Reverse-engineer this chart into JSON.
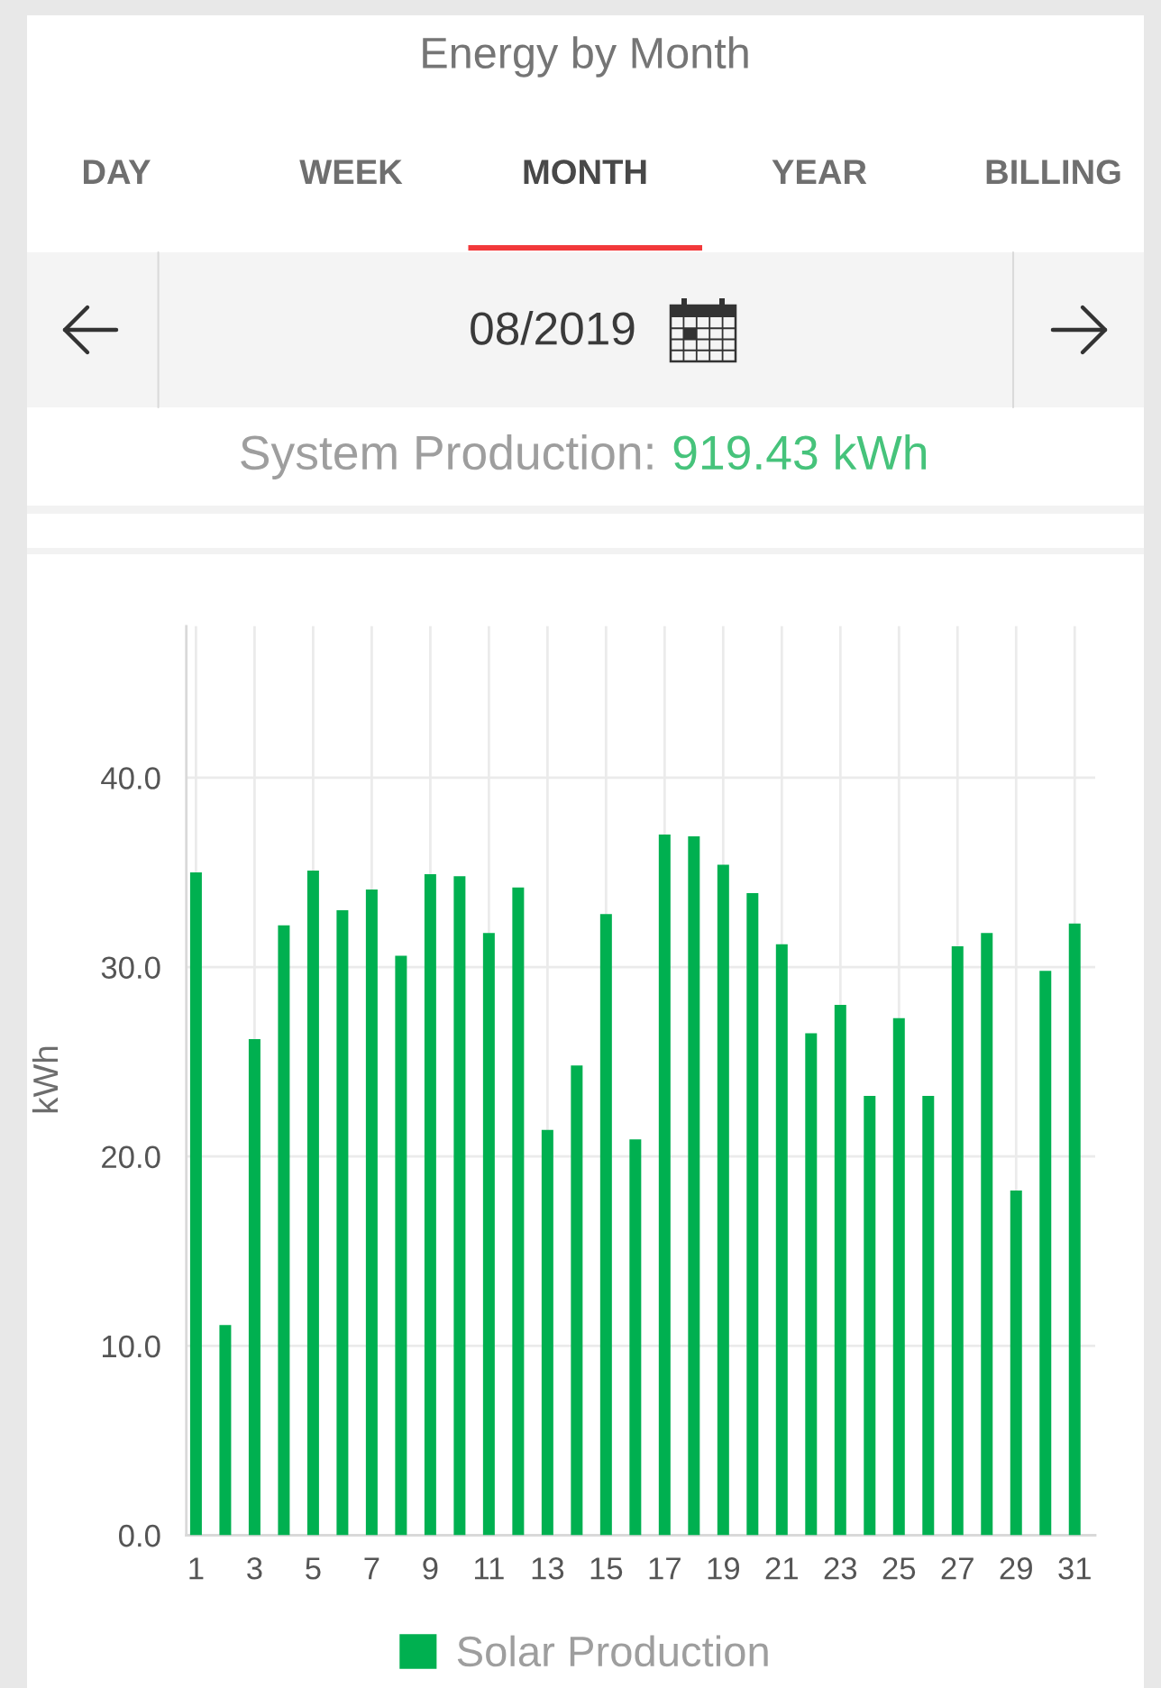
{
  "chart_data": {
    "type": "bar",
    "title": "Energy by Month",
    "annotations": [
      "DAY",
      "WEEK",
      "MONTH",
      "YEAR",
      "BILLING",
      "08/2019",
      "System Production:",
      "919.43 kWh"
    ],
    "ylabel": "kWh",
    "categories": [
      "1",
      null,
      "3",
      null,
      "5",
      null,
      "7",
      null,
      "9",
      null,
      "11",
      null,
      "13",
      null,
      "15",
      null,
      "17",
      null,
      "19",
      null,
      "21",
      null,
      "23",
      null,
      "25",
      null,
      "27",
      null,
      "29",
      null,
      "31"
    ],
    "series": [
      {
        "name": "Solar Production",
        "color": "#00b050",
        "values": [
          35.0,
          11.1,
          26.2,
          32.2,
          35.1,
          33.0,
          34.1,
          30.6,
          34.9,
          34.8,
          31.8,
          34.2,
          21.4,
          24.8,
          32.8,
          20.9,
          37.0,
          36.9,
          35.4,
          33.9,
          31.2,
          26.5,
          28.0,
          23.2,
          27.3,
          23.2,
          31.1,
          31.8,
          18.2,
          29.8,
          32.3
        ]
      }
    ],
    "ylim": [
      0,
      48
    ],
    "yticks": [
      {
        "value": 0,
        "label": "0.0"
      },
      {
        "value": 10,
        "label": "10.0"
      },
      {
        "value": 20,
        "label": "20.0"
      },
      {
        "value": 30,
        "label": "30.0"
      },
      {
        "value": 40,
        "label": "40.0"
      }
    ],
    "grid": true,
    "legend": "bottom"
  }
}
